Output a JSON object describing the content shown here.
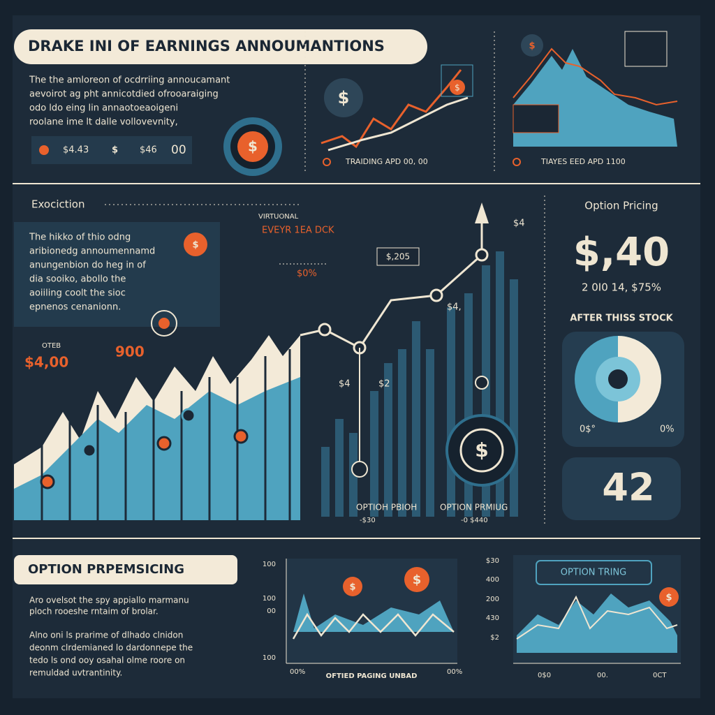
{
  "header": {
    "title": "DRAKE INI OF EARNINGS ANNOUMANTIONS"
  },
  "symbols": {
    "dollar": "$"
  },
  "intro": {
    "lines": [
      "The the amloreon of ocdrriing annoucamant",
      "aevoirot ag pht annicotdied ofrooaraiging",
      "odo ldo eing lin annaotoeaoigeni",
      "roolane ime lt dalle vollovevnity,"
    ],
    "stats": [
      "$4.43",
      "$",
      "$46",
      "00"
    ]
  },
  "trading": {
    "caption": "TRAIDING APD 00, 00"
  },
  "trades": {
    "caption": "TIAYES EED APD 1100"
  },
  "execution": {
    "title": "Exociction",
    "lines": [
      "The hikko of thio odng",
      "aribionedg annoumennamd",
      "anungenbion do heg in of",
      "dia sooiko, abollo the",
      "aoiiling coolt the sioc",
      "epnenos cenanionn."
    ],
    "label_left": "OTEB",
    "price_left": "$4,00",
    "price_mid": "900",
    "small_left": "$4",
    "small_mid": "$2",
    "vote": "VIRTUONAL",
    "event": "EVEYR 1EA DCK",
    "box": "$,205",
    "pct": "$0%",
    "tick": "$4",
    "tick2": "$4,",
    "bottom1": "OPTIOH PBIOH",
    "bottom1_sub": "-$30",
    "bottom2": "OPTION PRMIUG",
    "bottom2_sub": "-0 $440"
  },
  "pricing": {
    "title": "Option Pricing",
    "price": "$,40",
    "sub": "2 0I0 14, $75%",
    "label": "AFTER THISS STOCK",
    "left_pct": "0$°",
    "right_pct": "0%",
    "value": "42"
  },
  "bottom": {
    "title": "OPTION PRPEMSICING",
    "lines": [
      "Aro ovelsot the spy appiallo marmanu",
      "ploch rooeshe rntaim of brolar.",
      "Alno oni ls prarime of dlhado clnidon",
      "deonm clrdemianed lo dardonnepe the",
      "tedo ls ond ooy osahal olme roore on",
      "remuldad uvtrantinity."
    ],
    "chart1": {
      "yticks": [
        "100",
        "100",
        "00",
        "100"
      ],
      "x": [
        "00%",
        "OFTIED PAGING UNBAD",
        "00%"
      ]
    },
    "chart2": {
      "title": "OPTION TRING",
      "yticks": [
        "$30",
        "400",
        "200",
        "430",
        "$2"
      ],
      "x": [
        "0$0",
        "00.",
        "0CT"
      ]
    }
  }
}
